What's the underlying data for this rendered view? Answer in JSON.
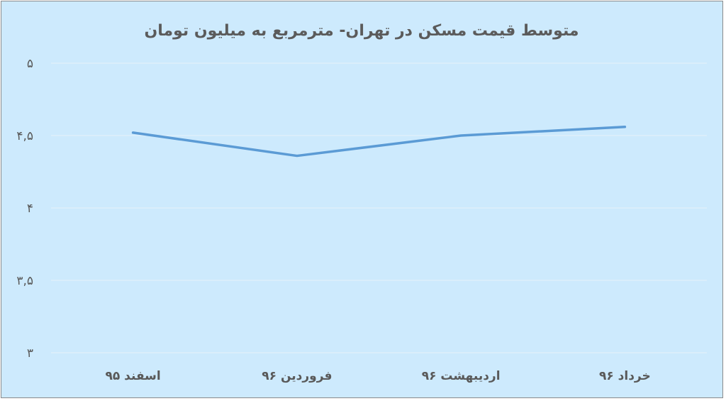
{
  "chart_data": {
    "type": "line",
    "title": "متوسط قیمت مسکن در تهران- مترمربع به میلیون تومان",
    "xlabel": "",
    "ylabel": "",
    "categories": [
      "اسفند ۹۵",
      "فروردین ۹۶",
      "اردیبهشت ۹۶",
      "خرداد ۹۶"
    ],
    "series": [
      {
        "values": [
          4.52,
          4.36,
          4.5,
          4.56
        ]
      }
    ],
    "ylim": [
      3,
      5
    ],
    "yticks": [
      5,
      4.5,
      4,
      3.5,
      3
    ],
    "ytick_labels": [
      "۵",
      "۴,۵",
      "۴",
      "۳,۵",
      "۳"
    ],
    "grid": true,
    "legend": "none",
    "colors": {
      "background": "#cdeafd",
      "line": "#5b9bd5",
      "gridline": "#e6f1f9"
    }
  }
}
